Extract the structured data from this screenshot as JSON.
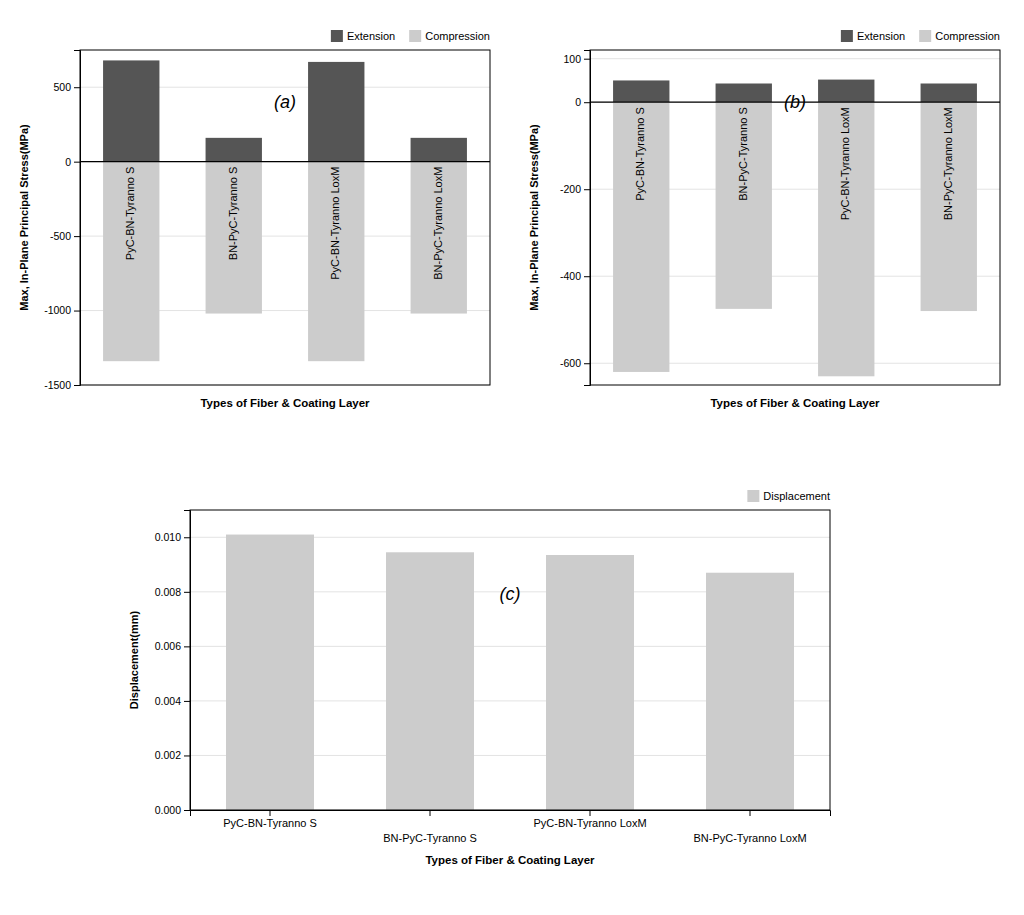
{
  "chart_data": [
    {
      "type": "bar",
      "subtitle": "(a)",
      "categories": [
        "PyC-BN-Tyranno S",
        "BN-PyC-Tyranno S",
        "PyC-BN-Tyranno LoxM",
        "BN-PyC-Tyranno LoxM"
      ],
      "series": [
        {
          "name": "Extension",
          "color": "#555555",
          "values": [
            680,
            160,
            670,
            160
          ]
        },
        {
          "name": "Compression",
          "color": "#cccccc",
          "values": [
            -1340,
            -1020,
            -1340,
            -1020
          ]
        }
      ],
      "ylim": [
        -1500,
        750
      ],
      "yticks": [
        -1500,
        -1000,
        -500,
        0,
        500
      ],
      "ylabel": "Max, In-Plane Principal Stress(MPa)",
      "xlabel": "Types of Fiber & Coating Layer",
      "grid": true,
      "legend": "upper right"
    },
    {
      "type": "bar",
      "subtitle": "(b)",
      "categories": [
        "PyC-BN-Tyranno S",
        "BN-PyC-Tyranno S",
        "PyC-BN-Tyranno LoxM",
        "BN-PyC-Tyranno LoxM"
      ],
      "series": [
        {
          "name": "Extension",
          "color": "#555555",
          "values": [
            50,
            43,
            52,
            43
          ]
        },
        {
          "name": "Compression",
          "color": "#cccccc",
          "values": [
            -620,
            -475,
            -630,
            -480
          ]
        }
      ],
      "ylim": [
        -650,
        120
      ],
      "yticks": [
        -600,
        -400,
        -200,
        0,
        100
      ],
      "ylabel": "Max, In-Plane Principal Stress(MPa)",
      "xlabel": "Types of Fiber & Coating Layer",
      "grid": true,
      "legend": "upper right"
    },
    {
      "type": "bar",
      "subtitle": "(c)",
      "categories": [
        "PyC-BN-Tyranno S",
        "BN-PyC-Tyranno S",
        "PyC-BN-Tyranno LoxM",
        "BN-PyC-Tyranno LoxM"
      ],
      "series": [
        {
          "name": "Displacement",
          "color": "#cccccc",
          "values": [
            0.0101,
            0.00945,
            0.00935,
            0.0087
          ]
        }
      ],
      "ylim": [
        0,
        0.011
      ],
      "yticks": [
        {
          "value": 0,
          "label": "0.000"
        },
        {
          "value": 0.002,
          "label": "0.002"
        },
        {
          "value": 0.004,
          "label": "0.004"
        },
        {
          "value": 0.006,
          "label": "0.006"
        },
        {
          "value": 0.008,
          "label": "0.008"
        },
        {
          "value": 0.01,
          "label": "0.010"
        }
      ],
      "ylabel": "Displacement(mm)",
      "xlabel": "Types of Fiber & Coating Layer",
      "grid": true,
      "legend": "upper right"
    }
  ]
}
